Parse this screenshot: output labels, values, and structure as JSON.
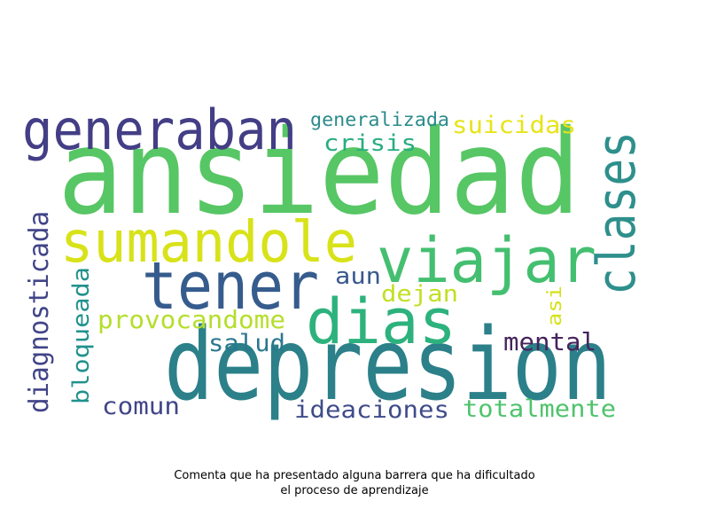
{
  "words": [
    {
      "text": "ansiedad",
      "color": "#57c665"
    },
    {
      "text": "depresion",
      "color": "#2b8089"
    },
    {
      "text": "generaban",
      "color": "#433e85"
    },
    {
      "text": "sumandole",
      "color": "#d8e219"
    },
    {
      "text": "tener",
      "color": "#365c8d"
    },
    {
      "text": "viajar",
      "color": "#44bf70"
    },
    {
      "text": "dias",
      "color": "#2db27d"
    },
    {
      "text": "clases",
      "color": "#2e8f8c"
    },
    {
      "text": "diagnosticada",
      "color": "#414487"
    },
    {
      "text": "bloqueada",
      "color": "#21918c"
    },
    {
      "text": "provocandome",
      "color": "#b5de2b"
    },
    {
      "text": "salud",
      "color": "#2a788e"
    },
    {
      "text": "comun",
      "color": "#404588"
    },
    {
      "text": "ideaciones",
      "color": "#3e4c8a"
    },
    {
      "text": "totalmente",
      "color": "#4ec36b"
    },
    {
      "text": "mental",
      "color": "#46245c"
    },
    {
      "text": "generalizada",
      "color": "#2c8b8c"
    },
    {
      "text": "suicidas",
      "color": "#e7e419"
    },
    {
      "text": "crisis",
      "color": "#27ad81"
    },
    {
      "text": "aun",
      "color": "#38598c"
    },
    {
      "text": "dejan",
      "color": "#c2df23"
    },
    {
      "text": "asi",
      "color": "#d5e21a"
    }
  ],
  "caption": {
    "line1": "Comenta que ha presentado alguna barrera que ha dificultado",
    "line2": "el proceso de aprendizaje"
  }
}
